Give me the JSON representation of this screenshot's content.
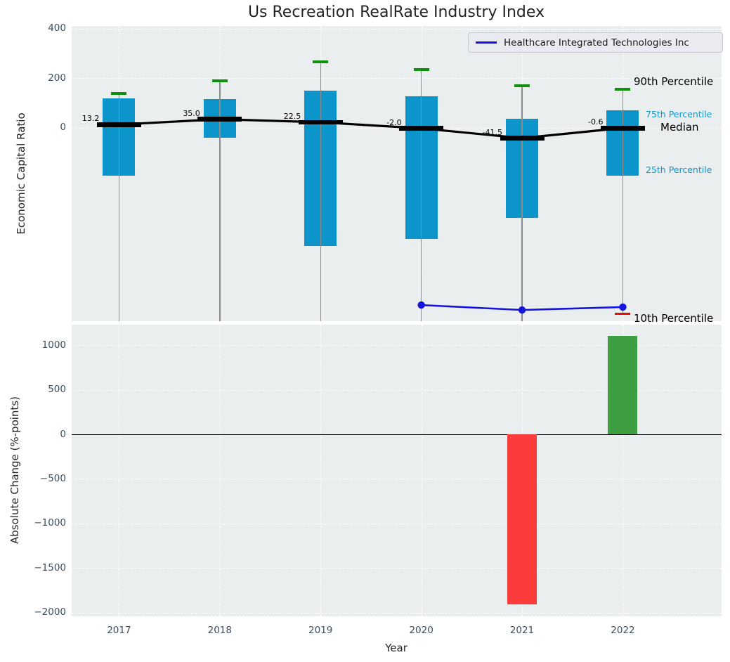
{
  "title": "Us Recreation RealRate Industry Index",
  "colors": {
    "figure_bg": "#ffffff",
    "axes_bg": "#ebeeef",
    "grid": "#ffffff",
    "tick_label": "#3d4e60",
    "text_dark": "#262626",
    "box_bar": "#0c95ca",
    "whisker": "#8c8c8c",
    "median": "#000000",
    "p90_cap": "#0e8f0e",
    "p10_cap": "#dd1111",
    "company_line": "#1414dd",
    "positive_bar": "#3c9e40",
    "negative_bar": "#fb3c3c",
    "percentile_label_cyan": "#0e96cc"
  },
  "chart_data": [
    {
      "type": "box-timeseries",
      "title": "Us Recreation RealRate Industry Index",
      "ylabel": "Economic Capital Ratio",
      "x": [
        2017,
        2018,
        2019,
        2020,
        2021,
        2022
      ],
      "xlim": [
        2016.53,
        2022.98
      ],
      "ylim": [
        -780,
        411
      ],
      "ytick_values": [
        400,
        200,
        0
      ],
      "ytick_labels": [
        "400",
        "200",
        "0"
      ],
      "grid": true,
      "box": {
        "p90": [
          139,
          190,
          266,
          235,
          170,
          156
        ],
        "p75": [
          119,
          116,
          150,
          127,
          37,
          71
        ],
        "median": [
          13.2,
          35.0,
          22.5,
          -2.0,
          -41.5,
          -0.6
        ],
        "median_labels": [
          "13.2",
          "35.0",
          "22.5",
          "-2.0",
          "-41.5",
          "-0.6"
        ],
        "p25": [
          -193,
          -40,
          -477,
          -448,
          -363,
          -193
        ],
        "p10": [
          null,
          null,
          null,
          null,
          null,
          -750
        ]
      },
      "company_series": {
        "name": "Healthcare Integrated Technologies Inc",
        "x": [
          2020,
          2021,
          2022
        ],
        "y": [
          -715,
          -735,
          -723
        ]
      },
      "legend": {
        "position": "upper right",
        "entries": [
          {
            "label": "Healthcare Integrated Technologies Inc",
            "color": "#1414dd"
          }
        ]
      },
      "annotations": [
        {
          "text": "90th Percentile",
          "color": "#000000"
        },
        {
          "text": "75th Percentile",
          "color": "#0e96cc"
        },
        {
          "text": "Median",
          "color": "#000000"
        },
        {
          "text": "25th Percentile",
          "color": "#0e96cc"
        },
        {
          "text": "10th Percentile",
          "color": "#000000"
        }
      ]
    },
    {
      "type": "bar",
      "ylabel": "Absolute Change (%-points)",
      "xlabel": "Year",
      "categories": [
        "2017",
        "2018",
        "2019",
        "2020",
        "2021",
        "2022"
      ],
      "values": [
        null,
        null,
        null,
        null,
        -1910,
        1100
      ],
      "bar_colors": [
        null,
        null,
        null,
        null,
        "#fb3c3c",
        "#3c9e40"
      ],
      "ylim": [
        -2042,
        1230
      ],
      "ytick_values": [
        1000,
        500,
        0,
        -500,
        -1000,
        -1500,
        -2000
      ],
      "ytick_labels": [
        "1000",
        "500",
        "0",
        "−500",
        "−1000",
        "−1500",
        "−2000"
      ],
      "zero_line": true,
      "grid": true
    }
  ]
}
